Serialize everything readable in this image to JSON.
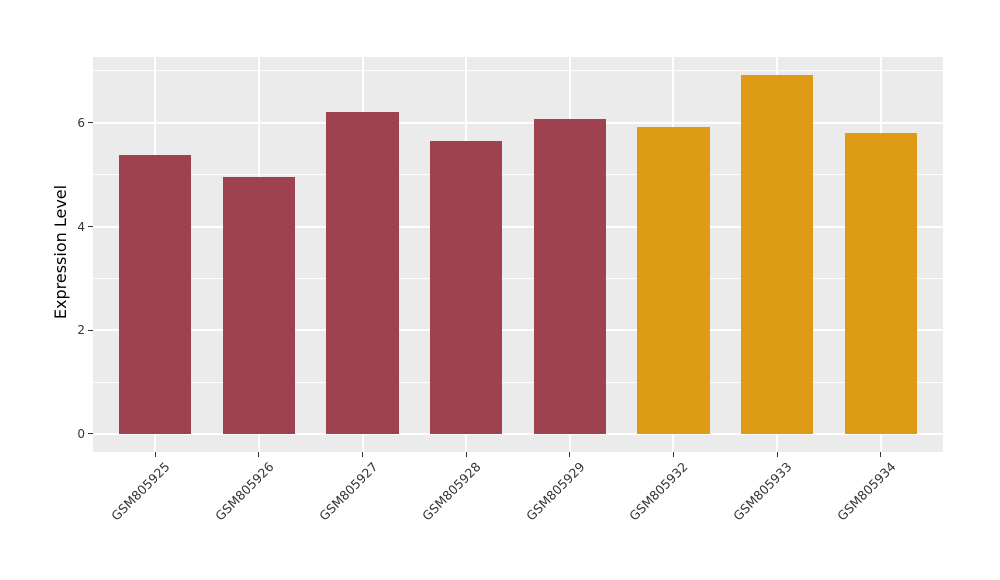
{
  "chart_data": {
    "type": "bar",
    "title": "",
    "xlabel": "",
    "ylabel": "Expression Level",
    "categories": [
      "GSM805925",
      "GSM805926",
      "GSM805927",
      "GSM805928",
      "GSM805929",
      "GSM805932",
      "GSM805933",
      "GSM805934"
    ],
    "values": [
      5.37,
      4.96,
      6.21,
      5.65,
      6.07,
      5.91,
      6.93,
      5.8
    ],
    "bar_colors": [
      "#9E4250",
      "#9E4250",
      "#9E4250",
      "#9E4250",
      "#9E4250",
      "#DE9B16",
      "#DE9B16",
      "#DE9B16"
    ],
    "series_colors": {
      "maroon_group": "#9E4250",
      "orange_group": "#DE9B16"
    },
    "ylim": [
      -0.35,
      7.27
    ],
    "yticks": [
      0,
      2,
      4,
      6
    ],
    "yticks_minor": [
      1,
      3,
      5,
      7
    ],
    "grid": true,
    "legend_position": "none",
    "panel_bg": "#EBEBEB",
    "grid_color": "#FFFFFF",
    "tick_label_color": "#333333",
    "axis_title_color": "#000000"
  }
}
